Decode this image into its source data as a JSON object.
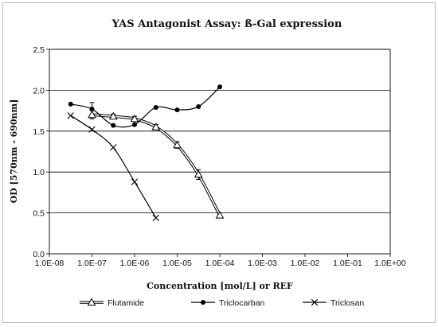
{
  "chart_data": {
    "type": "line",
    "title": "YAS Antagonist Assay: ß-Gal expression",
    "xlabel": "Concentration [mol/L] or REF",
    "ylabel": "OD [570nm - 690nm]",
    "x_scale": "log",
    "xlim": [
      1e-08,
      1
    ],
    "ylim": [
      0,
      2.5
    ],
    "x_ticks": [
      1e-08,
      1e-07,
      1e-06,
      1e-05,
      0.0001,
      0.001,
      0.01,
      0.1,
      1
    ],
    "x_tick_labels": [
      "1.0E-08",
      "1.0E-07",
      "1.0E-06",
      "1.0E-05",
      "1.0E-04",
      "1.0E-03",
      "1.0E-02",
      "1.0E-01",
      "1.0E+00"
    ],
    "y_ticks": [
      0,
      0.5,
      1.0,
      1.5,
      2.0,
      2.5
    ],
    "y_tick_labels": [
      "0.0",
      "0.5",
      "1.0",
      "1.5",
      "2.0",
      "2.5"
    ],
    "grid": "horizontal",
    "legend_position": "bottom",
    "series": [
      {
        "name": "Flutamide",
        "marker": "triangle",
        "style": "double-line",
        "x": [
          1e-07,
          3.16e-07,
          1e-06,
          3.16e-06,
          1e-05,
          3.16e-05,
          0.0001
        ],
        "y": [
          1.7,
          1.68,
          1.65,
          1.55,
          1.33,
          0.97,
          0.47
        ],
        "err": [
          0.05,
          0.03,
          0.03,
          0.03,
          0.04,
          0.06,
          0.03
        ]
      },
      {
        "name": "Triclocarban",
        "marker": "circle",
        "style": "solid",
        "x": [
          3.16e-08,
          1e-07,
          3.16e-07,
          1e-06,
          3.16e-06,
          1e-05,
          3.16e-05,
          0.0001
        ],
        "y": [
          1.83,
          1.77,
          1.57,
          1.58,
          1.79,
          1.76,
          1.8,
          2.04
        ],
        "err": [
          0,
          0.08,
          0,
          0,
          0,
          0,
          0,
          0
        ]
      },
      {
        "name": "Triclosan",
        "marker": "x",
        "style": "solid",
        "x": [
          3.16e-08,
          1e-07,
          3.16e-07,
          1e-06,
          3.16e-06
        ],
        "y": [
          1.69,
          1.52,
          1.3,
          0.88,
          0.44
        ],
        "err": [
          0,
          0,
          0,
          0,
          0
        ]
      }
    ]
  }
}
